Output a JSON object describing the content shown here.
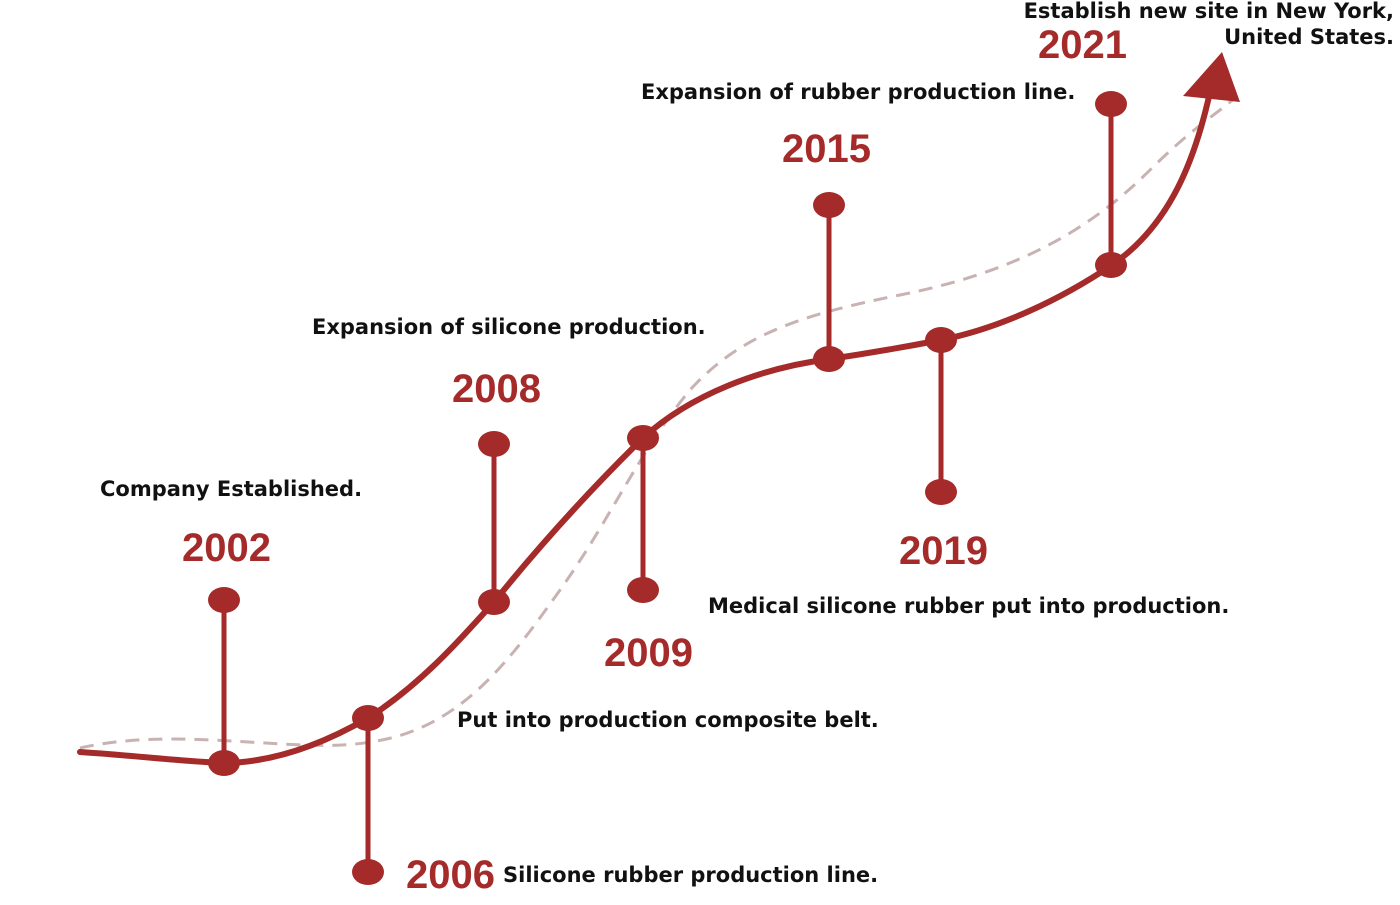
{
  "colors": {
    "accent": "#a52a2a",
    "guide_dashed": "#c9b2b2",
    "text": "#111111"
  },
  "milestones": [
    {
      "year": "2002",
      "text": "Company Established."
    },
    {
      "year": "2006",
      "text": "Silicone rubber production line."
    },
    {
      "year": "2008",
      "text": "Expansion of silicone production."
    },
    {
      "year": "2009",
      "text": "Put into production composite belt."
    },
    {
      "year": "2015",
      "text": "Expansion of rubber production line."
    },
    {
      "year": "2019",
      "text": "Medical silicone rubber put into production."
    },
    {
      "year": "2021",
      "text_line1": "Establish new site in New York,",
      "text_line2": "United States."
    }
  ]
}
